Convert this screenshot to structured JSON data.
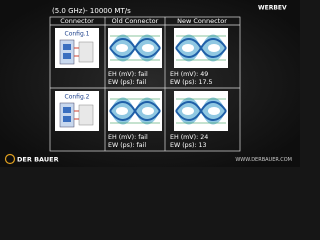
{
  "header": {
    "title": "(5.0 GHz)- 10000 MT/s",
    "logo": "WERBEV"
  },
  "table": {
    "columns": [
      "Connector",
      "Old Connector",
      "New Connector"
    ],
    "rows": [
      {
        "config": "Config.1",
        "old": [
          "EH (mV): fail",
          "EW (ps): fail"
        ],
        "new": [
          "EH (mV): 49",
          "EW (ps): 17.5"
        ]
      },
      {
        "config": "Config.2",
        "old": [
          "EH (mV): fail",
          "EW (ps): fail"
        ],
        "new": [
          "EH (mV): 24",
          "EW (ps): 13"
        ]
      }
    ]
  },
  "footer": {
    "brand": "DER BAUER",
    "url": "WWW.DERBAUER.COM"
  }
}
